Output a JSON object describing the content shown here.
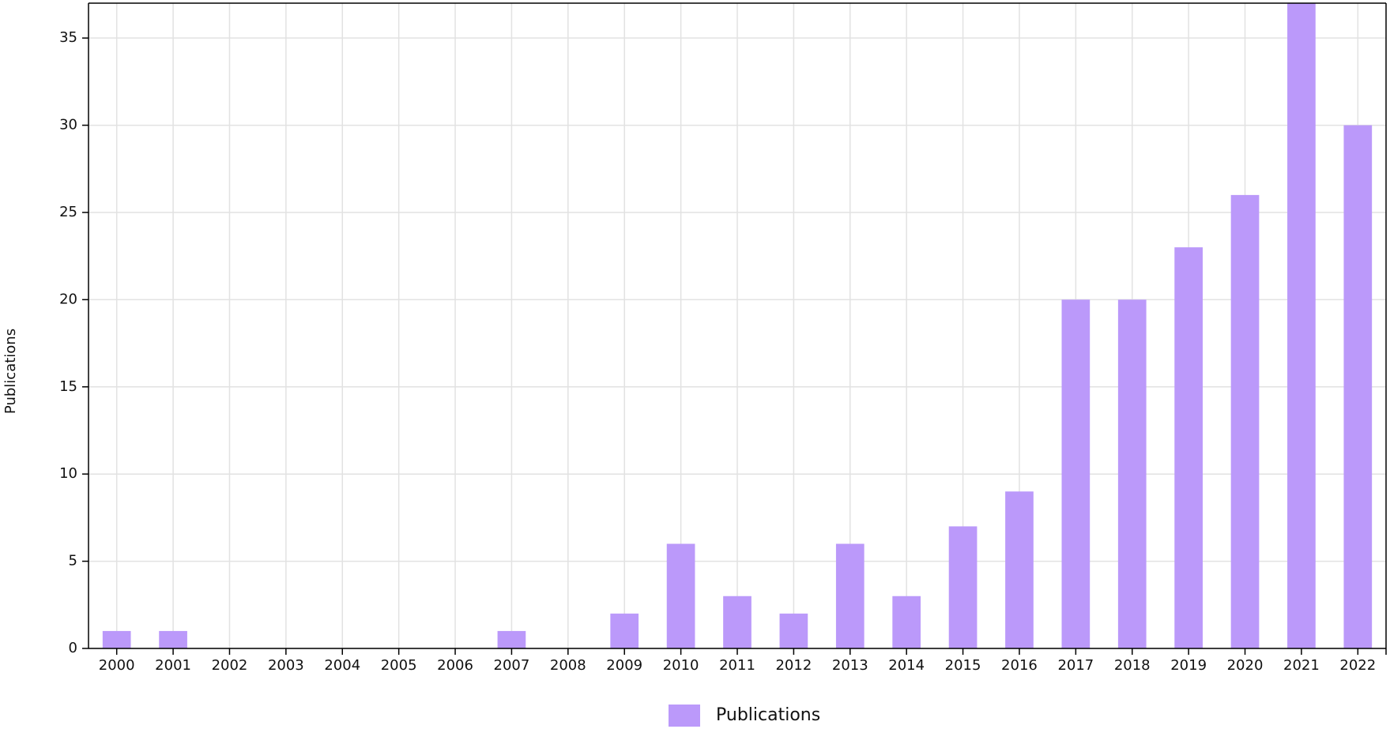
{
  "chart_data": {
    "type": "bar",
    "y_label": "Publications",
    "categories": [
      "2000",
      "2001",
      "2002",
      "2003",
      "2004",
      "2005",
      "2006",
      "2007",
      "2008",
      "2009",
      "2010",
      "2011",
      "2012",
      "2013",
      "2014",
      "2015",
      "2016",
      "2017",
      "2018",
      "2019",
      "2020",
      "2021",
      "2022"
    ],
    "series": [
      {
        "name": "Publications",
        "color": "#bb99fa",
        "values": [
          1,
          1,
          0,
          0,
          0,
          0,
          0,
          1,
          0,
          2,
          6,
          3,
          2,
          6,
          3,
          7,
          9,
          20,
          20,
          23,
          26,
          37,
          30
        ]
      }
    ],
    "ylim": [
      0,
      37
    ],
    "yticks": [
      0,
      5,
      10,
      15,
      20,
      25,
      30,
      35
    ],
    "grid": true,
    "legend": "bottom"
  }
}
